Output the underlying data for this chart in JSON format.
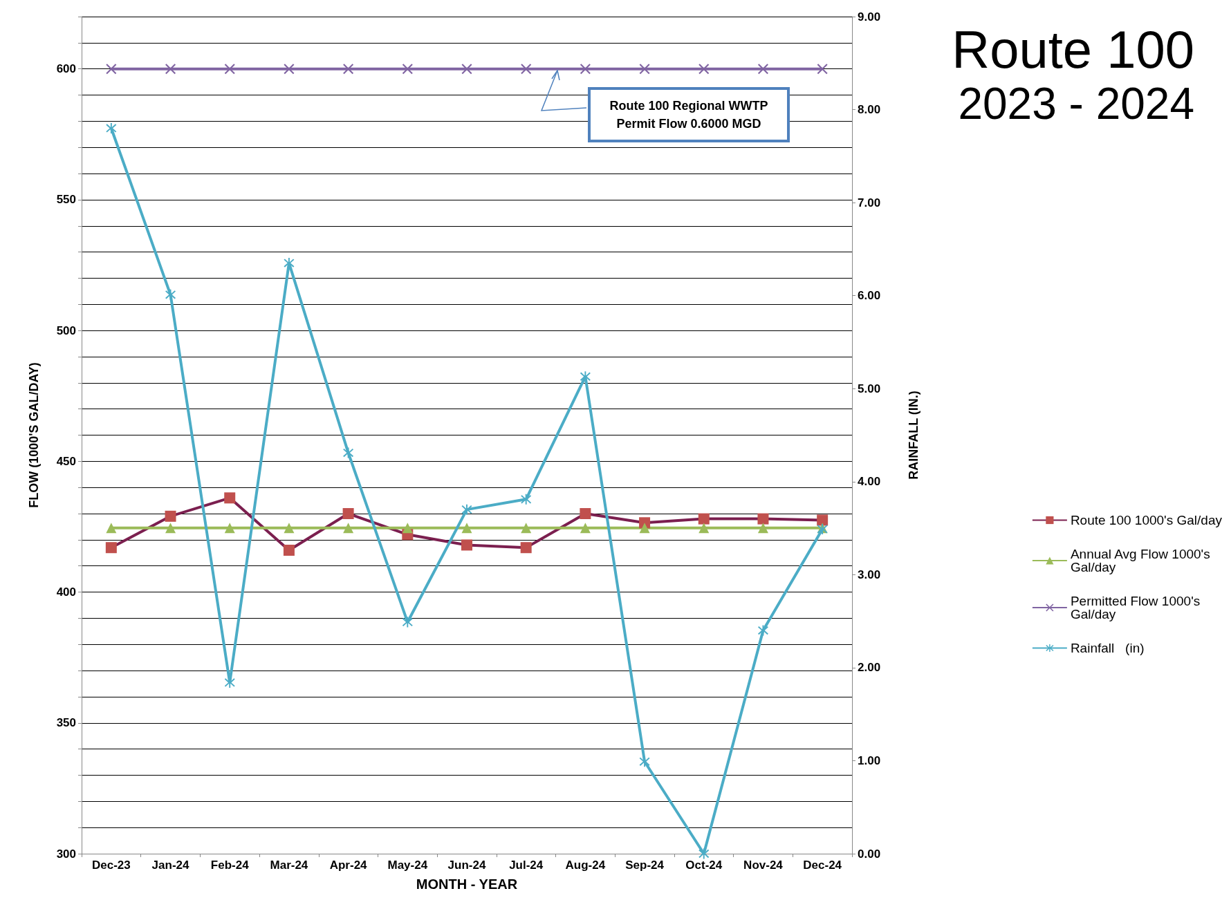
{
  "chart_data": {
    "type": "line",
    "title": "Route 100",
    "subtitle": "2023 - 2024",
    "xlabel": "MONTH - YEAR",
    "ylabel": "FLOW (1000'S GAL/DAY)",
    "y2label": "RAINFALL (IN.)",
    "categories": [
      "Dec-23",
      "Jan-24",
      "Feb-24",
      "Mar-24",
      "Apr-24",
      "May-24",
      "Jun-24",
      "Jul-24",
      "Aug-24",
      "Sep-24",
      "Oct-24",
      "Nov-24",
      "Dec-24"
    ],
    "series": [
      {
        "name": "Route 100 1000's Gal/day",
        "color": "#7b1f4f",
        "marker": "square",
        "colors": [
          "#c0504d",
          "#c0504d",
          "#c0504d",
          "#c0504d",
          "#c0504d",
          "#c0504d",
          "#c0504d",
          "#c0504d",
          "#c0504d",
          "#c0504d",
          "#c0504d",
          "#c0504d",
          "#c0504d"
        ],
        "values": [
          417,
          429,
          436,
          416,
          430,
          422,
          418,
          417,
          430,
          426.5,
          428,
          428,
          427.5
        ]
      },
      {
        "name": "Annual Avg Flow 1000's Gal/day",
        "color": "#9bbb59",
        "marker": "triangle",
        "values": [
          424.5,
          424.5,
          424.5,
          424.5,
          424.5,
          424.5,
          424.5,
          424.5,
          424.5,
          424.5,
          424.5,
          424.5,
          424.5
        ]
      },
      {
        "name": "Permitted Flow 1000's Gal/day",
        "color": "#8064a2",
        "marker": "cross",
        "values": [
          600,
          600,
          600,
          600,
          600,
          600,
          600,
          600,
          600,
          600,
          600,
          600,
          600
        ]
      },
      {
        "name": "Rainfall   (in)",
        "color": "#4bacc6",
        "marker": "star",
        "axis": "y2",
        "values": [
          7.8,
          6.01,
          1.84,
          6.35,
          4.31,
          2.49,
          3.7,
          3.81,
          5.13,
          0.99,
          0,
          2.4,
          3.49
        ]
      }
    ],
    "ylim": [
      300,
      620
    ],
    "yticks": [
      300,
      {
        "value": 310,
        "label": null
      },
      {
        "value": 320,
        "label": null
      },
      {
        "value": 330,
        "label": null
      },
      {
        "value": 340,
        "label": null
      },
      350,
      {
        "value": 360,
        "label": null
      },
      {
        "value": 370,
        "label": null
      },
      {
        "value": 380,
        "label": null
      },
      {
        "value": 390,
        "label": null
      },
      400,
      {
        "value": 410,
        "label": null
      },
      {
        "value": 420,
        "label": null
      },
      {
        "value": 430,
        "label": null
      },
      {
        "value": 440,
        "label": null
      },
      450,
      {
        "value": 460,
        "label": null
      },
      {
        "value": 470,
        "label": null
      },
      {
        "value": 480,
        "label": null
      },
      {
        "value": 490,
        "label": null
      },
      500,
      {
        "value": 510,
        "label": null
      },
      {
        "value": 520,
        "label": null
      },
      {
        "value": 530,
        "label": null
      },
      {
        "value": 540,
        "label": null
      },
      550,
      {
        "value": 560,
        "label": null
      },
      {
        "value": 570,
        "label": null
      },
      {
        "value": 580,
        "label": null
      },
      {
        "value": 590,
        "label": null
      },
      600,
      {
        "value": 610,
        "label": null
      },
      {
        "value": 620,
        "label": null
      }
    ],
    "y2lim": [
      0,
      9
    ],
    "y2ticks": [
      {
        "value": 0,
        "label": "0.00"
      },
      {
        "value": 1,
        "label": "1.00"
      },
      {
        "value": 2,
        "label": "2.00"
      },
      {
        "value": 3,
        "label": "3.00"
      },
      {
        "value": 4,
        "label": "4.00"
      },
      {
        "value": 5,
        "label": "5.00"
      },
      {
        "value": 6,
        "label": "6.00"
      },
      {
        "value": 7,
        "label": "7.00"
      },
      {
        "value": 8,
        "label": "8.00"
      },
      {
        "value": 9,
        "label": "9.00"
      }
    ],
    "grid": "y",
    "legend": "right",
    "annotations": [
      {
        "text": "Route 100 Regional WWTP\nPermit Flow 0.6000 MGD",
        "y": 600
      }
    ]
  }
}
